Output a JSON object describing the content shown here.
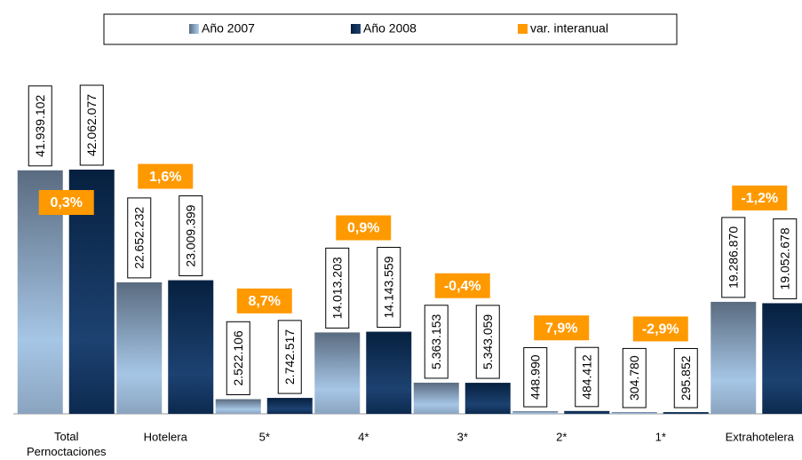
{
  "chart_data": {
    "type": "bar",
    "categories": [
      "Total Pernoctaciones",
      "Hotelera",
      "5*",
      "4*",
      "3*",
      "2*",
      "1*",
      "Extrahotelera"
    ],
    "series": [
      {
        "name": "Año 2007",
        "color": "#8fb3d9",
        "values": [
          41939102,
          22652232,
          2522106,
          14013203,
          5363153,
          448990,
          304780,
          19286870
        ],
        "value_labels": [
          "41.939.102",
          "22.652.232",
          "2.522.106",
          "14.013.203",
          "5.363.153",
          "448.990",
          "304.780",
          "19.286.870"
        ]
      },
      {
        "name": "Año 2008",
        "color": "#0e2f5a",
        "values": [
          42062077,
          23009399,
          2742517,
          14143559,
          5343059,
          484412,
          295852,
          19052678
        ],
        "value_labels": [
          "42.062.077",
          "23.009.399",
          "2.742.517",
          "14.143.559",
          "5.343.059",
          "484.412",
          "295.852",
          "19.052.678"
        ]
      },
      {
        "name": "var. interanual",
        "color": "#ff9900",
        "values": [
          0.3,
          1.6,
          8.7,
          0.9,
          -0.4,
          7.9,
          -2.9,
          -1.2
        ],
        "value_labels": [
          "0,3%",
          "1,6%",
          "8,7%",
          "0,9%",
          "-0,4%",
          "7,9%",
          "-2,9%",
          "-1,2%"
        ]
      }
    ],
    "legend": "top"
  }
}
